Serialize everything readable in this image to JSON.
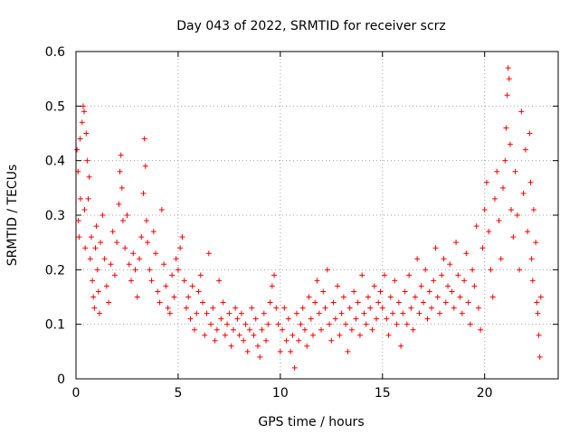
{
  "chart_data": {
    "type": "scatter",
    "title": "Day 043 of 2022, SRMTID for receiver scrz",
    "xlabel": "GPS time / hours",
    "ylabel": "SRMTID / TECUs",
    "xlim": [
      0,
      23.6
    ],
    "ylim": [
      0,
      0.6
    ],
    "x_ticks": [
      0,
      5,
      10,
      15,
      20
    ],
    "x_tick_labels": [
      "0",
      "5",
      "10",
      "15",
      "20"
    ],
    "y_ticks": [
      0,
      0.1,
      0.2,
      0.3,
      0.4,
      0.5,
      0.6
    ],
    "y_tick_labels": [
      "0",
      "0.1",
      "0.2",
      "0.3",
      "0.4",
      "0.5",
      "0.6"
    ],
    "grid": true,
    "marker": "+",
    "color": "#ff0000",
    "series": [
      {
        "name": "SRMTID",
        "points": [
          [
            0.05,
            0.42
          ],
          [
            0.1,
            0.38
          ],
          [
            0.12,
            0.29
          ],
          [
            0.15,
            0.26
          ],
          [
            0.2,
            0.44
          ],
          [
            0.22,
            0.33
          ],
          [
            0.3,
            0.47
          ],
          [
            0.35,
            0.5
          ],
          [
            0.4,
            0.49
          ],
          [
            0.42,
            0.31
          ],
          [
            0.45,
            0.24
          ],
          [
            0.5,
            0.45
          ],
          [
            0.55,
            0.4
          ],
          [
            0.6,
            0.33
          ],
          [
            0.65,
            0.37
          ],
          [
            0.7,
            0.22
          ],
          [
            0.75,
            0.26
          ],
          [
            0.8,
            0.18
          ],
          [
            0.85,
            0.15
          ],
          [
            0.9,
            0.13
          ],
          [
            0.95,
            0.24
          ],
          [
            1.0,
            0.28
          ],
          [
            1.05,
            0.2
          ],
          [
            1.1,
            0.16
          ],
          [
            1.15,
            0.12
          ],
          [
            1.2,
            0.25
          ],
          [
            1.3,
            0.3
          ],
          [
            1.4,
            0.22
          ],
          [
            1.5,
            0.17
          ],
          [
            1.6,
            0.14
          ],
          [
            1.7,
            0.21
          ],
          [
            1.8,
            0.27
          ],
          [
            1.9,
            0.19
          ],
          [
            2.0,
            0.25
          ],
          [
            2.1,
            0.32
          ],
          [
            2.15,
            0.38
          ],
          [
            2.2,
            0.41
          ],
          [
            2.25,
            0.35
          ],
          [
            2.3,
            0.29
          ],
          [
            2.4,
            0.24
          ],
          [
            2.5,
            0.3
          ],
          [
            2.6,
            0.21
          ],
          [
            2.7,
            0.18
          ],
          [
            2.8,
            0.23
          ],
          [
            2.9,
            0.2
          ],
          [
            3.0,
            0.15
          ],
          [
            3.1,
            0.22
          ],
          [
            3.2,
            0.26
          ],
          [
            3.3,
            0.34
          ],
          [
            3.35,
            0.44
          ],
          [
            3.4,
            0.39
          ],
          [
            3.45,
            0.29
          ],
          [
            3.5,
            0.25
          ],
          [
            3.6,
            0.2
          ],
          [
            3.7,
            0.18
          ],
          [
            3.8,
            0.27
          ],
          [
            3.9,
            0.23
          ],
          [
            4.0,
            0.16
          ],
          [
            4.1,
            0.14
          ],
          [
            4.2,
            0.31
          ],
          [
            4.3,
            0.21
          ],
          [
            4.4,
            0.17
          ],
          [
            4.5,
            0.13
          ],
          [
            4.6,
            0.12
          ],
          [
            4.7,
            0.19
          ],
          [
            4.8,
            0.15
          ],
          [
            4.9,
            0.22
          ],
          [
            5.0,
            0.2
          ],
          [
            5.1,
            0.24
          ],
          [
            5.2,
            0.26
          ],
          [
            5.3,
            0.18
          ],
          [
            5.4,
            0.13
          ],
          [
            5.5,
            0.15
          ],
          [
            5.6,
            0.11
          ],
          [
            5.7,
            0.17
          ],
          [
            5.8,
            0.09
          ],
          [
            5.9,
            0.12
          ],
          [
            6.0,
            0.16
          ],
          [
            6.1,
            0.19
          ],
          [
            6.2,
            0.14
          ],
          [
            6.3,
            0.08
          ],
          [
            6.4,
            0.12
          ],
          [
            6.5,
            0.23
          ],
          [
            6.6,
            0.1
          ],
          [
            6.7,
            0.13
          ],
          [
            6.8,
            0.07
          ],
          [
            6.9,
            0.09
          ],
          [
            7.0,
            0.18
          ],
          [
            7.1,
            0.11
          ],
          [
            7.2,
            0.14
          ],
          [
            7.3,
            0.08
          ],
          [
            7.4,
            0.1
          ],
          [
            7.5,
            0.12
          ],
          [
            7.6,
            0.06
          ],
          [
            7.7,
            0.09
          ],
          [
            7.8,
            0.13
          ],
          [
            7.9,
            0.11
          ],
          [
            8.0,
            0.08
          ],
          [
            8.1,
            0.12
          ],
          [
            8.2,
            0.07
          ],
          [
            8.3,
            0.1
          ],
          [
            8.4,
            0.05
          ],
          [
            8.5,
            0.09
          ],
          [
            8.6,
            0.13
          ],
          [
            8.7,
            0.08
          ],
          [
            8.8,
            0.11
          ],
          [
            8.9,
            0.06
          ],
          [
            9.0,
            0.04
          ],
          [
            9.1,
            0.09
          ],
          [
            9.2,
            0.12
          ],
          [
            9.3,
            0.07
          ],
          [
            9.4,
            0.1
          ],
          [
            9.5,
            0.14
          ],
          [
            9.6,
            0.17
          ],
          [
            9.7,
            0.19
          ],
          [
            9.8,
            0.13
          ],
          [
            9.9,
            0.1
          ],
          [
            10.0,
            0.05
          ],
          [
            10.1,
            0.09
          ],
          [
            10.2,
            0.13
          ],
          [
            10.3,
            0.07
          ],
          [
            10.4,
            0.11
          ],
          [
            10.5,
            0.05
          ],
          [
            10.6,
            0.08
          ],
          [
            10.7,
            0.02
          ],
          [
            10.8,
            0.12
          ],
          [
            10.9,
            0.07
          ],
          [
            11.0,
            0.1
          ],
          [
            11.1,
            0.13
          ],
          [
            11.2,
            0.09
          ],
          [
            11.3,
            0.06
          ],
          [
            11.4,
            0.15
          ],
          [
            11.5,
            0.11
          ],
          [
            11.6,
            0.08
          ],
          [
            11.7,
            0.14
          ],
          [
            11.8,
            0.18
          ],
          [
            11.9,
            0.12
          ],
          [
            12.0,
            0.09
          ],
          [
            12.1,
            0.16
          ],
          [
            12.2,
            0.13
          ],
          [
            12.3,
            0.2
          ],
          [
            12.4,
            0.1
          ],
          [
            12.5,
            0.07
          ],
          [
            12.6,
            0.14
          ],
          [
            12.7,
            0.11
          ],
          [
            12.8,
            0.17
          ],
          [
            12.9,
            0.08
          ],
          [
            13.0,
            0.12
          ],
          [
            13.1,
            0.15
          ],
          [
            13.2,
            0.1
          ],
          [
            13.3,
            0.05
          ],
          [
            13.4,
            0.13
          ],
          [
            13.5,
            0.09
          ],
          [
            13.6,
            0.16
          ],
          [
            13.7,
            0.11
          ],
          [
            13.8,
            0.14
          ],
          [
            13.9,
            0.08
          ],
          [
            14.0,
            0.19
          ],
          [
            14.1,
            0.12
          ],
          [
            14.2,
            0.1
          ],
          [
            14.3,
            0.15
          ],
          [
            14.4,
            0.13
          ],
          [
            14.5,
            0.09
          ],
          [
            14.6,
            0.17
          ],
          [
            14.7,
            0.11
          ],
          [
            14.8,
            0.14
          ],
          [
            14.9,
            0.16
          ],
          [
            15.0,
            0.13
          ],
          [
            15.1,
            0.19
          ],
          [
            15.2,
            0.11
          ],
          [
            15.3,
            0.08
          ],
          [
            15.4,
            0.15
          ],
          [
            15.5,
            0.12
          ],
          [
            15.6,
            0.18
          ],
          [
            15.7,
            0.1
          ],
          [
            15.8,
            0.14
          ],
          [
            15.9,
            0.06
          ],
          [
            16.0,
            0.12
          ],
          [
            16.1,
            0.16
          ],
          [
            16.2,
            0.1
          ],
          [
            16.3,
            0.19
          ],
          [
            16.4,
            0.13
          ],
          [
            16.5,
            0.09
          ],
          [
            16.6,
            0.15
          ],
          [
            16.7,
            0.22
          ],
          [
            16.8,
            0.12
          ],
          [
            16.9,
            0.17
          ],
          [
            17.0,
            0.14
          ],
          [
            17.1,
            0.2
          ],
          [
            17.2,
            0.11
          ],
          [
            17.3,
            0.16
          ],
          [
            17.4,
            0.13
          ],
          [
            17.5,
            0.18
          ],
          [
            17.6,
            0.24
          ],
          [
            17.7,
            0.15
          ],
          [
            17.8,
            0.12
          ],
          [
            17.9,
            0.19
          ],
          [
            18.0,
            0.22
          ],
          [
            18.1,
            0.14
          ],
          [
            18.2,
            0.17
          ],
          [
            18.3,
            0.21
          ],
          [
            18.4,
            0.16
          ],
          [
            18.5,
            0.13
          ],
          [
            18.6,
            0.25
          ],
          [
            18.7,
            0.19
          ],
          [
            18.8,
            0.15
          ],
          [
            18.9,
            0.12
          ],
          [
            19.0,
            0.18
          ],
          [
            19.1,
            0.23
          ],
          [
            19.2,
            0.14
          ],
          [
            19.3,
            0.1
          ],
          [
            19.4,
            0.2
          ],
          [
            19.5,
            0.17
          ],
          [
            19.6,
            0.28
          ],
          [
            19.7,
            0.13
          ],
          [
            19.8,
            0.09
          ],
          [
            19.9,
            0.24
          ],
          [
            20.0,
            0.31
          ],
          [
            20.1,
            0.36
          ],
          [
            20.2,
            0.27
          ],
          [
            20.3,
            0.2
          ],
          [
            20.4,
            0.15
          ],
          [
            20.5,
            0.33
          ],
          [
            20.6,
            0.38
          ],
          [
            20.7,
            0.29
          ],
          [
            20.8,
            0.22
          ],
          [
            20.9,
            0.35
          ],
          [
            21.0,
            0.4
          ],
          [
            21.05,
            0.46
          ],
          [
            21.1,
            0.52
          ],
          [
            21.15,
            0.57
          ],
          [
            21.2,
            0.55
          ],
          [
            21.25,
            0.43
          ],
          [
            21.3,
            0.31
          ],
          [
            21.4,
            0.26
          ],
          [
            21.5,
            0.38
          ],
          [
            21.6,
            0.3
          ],
          [
            21.7,
            0.2
          ],
          [
            21.8,
            0.49
          ],
          [
            21.9,
            0.34
          ],
          [
            22.0,
            0.42
          ],
          [
            22.1,
            0.27
          ],
          [
            22.2,
            0.45
          ],
          [
            22.25,
            0.36
          ],
          [
            22.3,
            0.22
          ],
          [
            22.35,
            0.18
          ],
          [
            22.4,
            0.31
          ],
          [
            22.5,
            0.25
          ],
          [
            22.55,
            0.14
          ],
          [
            22.6,
            0.12
          ],
          [
            22.65,
            0.08
          ],
          [
            22.7,
            0.04
          ],
          [
            22.75,
            0.15
          ]
        ]
      }
    ]
  }
}
